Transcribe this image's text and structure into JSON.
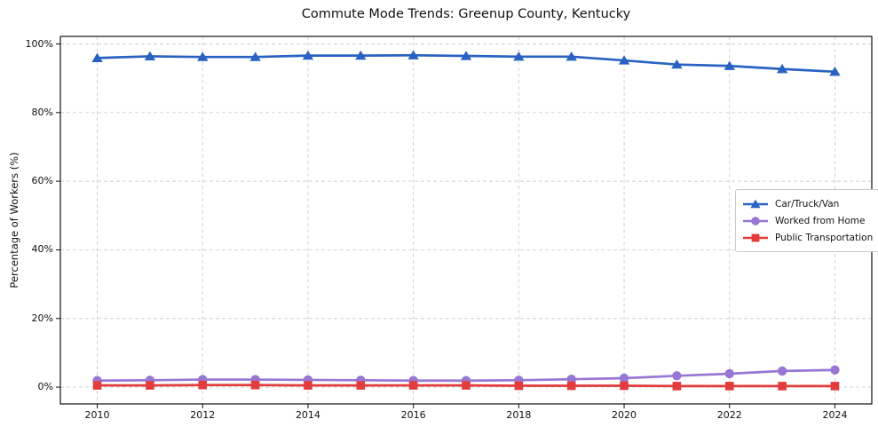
{
  "figure": {
    "title": "Commute Mode Trends: Greenup County, Kentucky"
  },
  "chart_data": {
    "type": "line",
    "title": "Commute Mode Trends: Greenup County, Kentucky",
    "xlabel": "",
    "ylabel": "Percentage of Workers (%)",
    "x": [
      2010,
      2011,
      2012,
      2013,
      2014,
      2015,
      2016,
      2017,
      2018,
      2019,
      2020,
      2021,
      2022,
      2023,
      2024
    ],
    "x_ticks": [
      2010,
      2012,
      2014,
      2016,
      2018,
      2020,
      2022,
      2024
    ],
    "x_tick_labels": [
      "2010",
      "2012",
      "2014",
      "2016",
      "2018",
      "2020",
      "2022",
      "2024"
    ],
    "y_ticks": [
      0,
      20,
      40,
      60,
      80,
      100
    ],
    "y_tick_labels": [
      "0%",
      "20%",
      "40%",
      "60%",
      "80%",
      "100%"
    ],
    "xlim": [
      2009.3,
      2024.7
    ],
    "ylim": [
      -4.9,
      102.2
    ],
    "grid": true,
    "grid_style": "dashed",
    "legend_position": "right-center",
    "series": [
      {
        "name": "Car/Truck/Van",
        "color": "#2a62c3",
        "marker": "triangle-up",
        "values": [
          95.9,
          96.4,
          96.2,
          96.2,
          96.6,
          96.6,
          96.7,
          96.5,
          96.3,
          96.3,
          95.2,
          94.0,
          93.6,
          92.7,
          91.9
        ]
      },
      {
        "name": "Worked from Home",
        "color": "#9876d4",
        "marker": "circle",
        "values": [
          1.9,
          2.0,
          2.2,
          2.2,
          2.1,
          2.0,
          1.9,
          1.9,
          2.0,
          2.3,
          2.6,
          3.3,
          3.9,
          4.7,
          5.0
        ]
      },
      {
        "name": "Public Transportation",
        "color": "#e23c3c",
        "marker": "square",
        "values": [
          0.5,
          0.5,
          0.6,
          0.6,
          0.5,
          0.5,
          0.5,
          0.5,
          0.4,
          0.4,
          0.4,
          0.3,
          0.3,
          0.3,
          0.3
        ]
      }
    ]
  }
}
